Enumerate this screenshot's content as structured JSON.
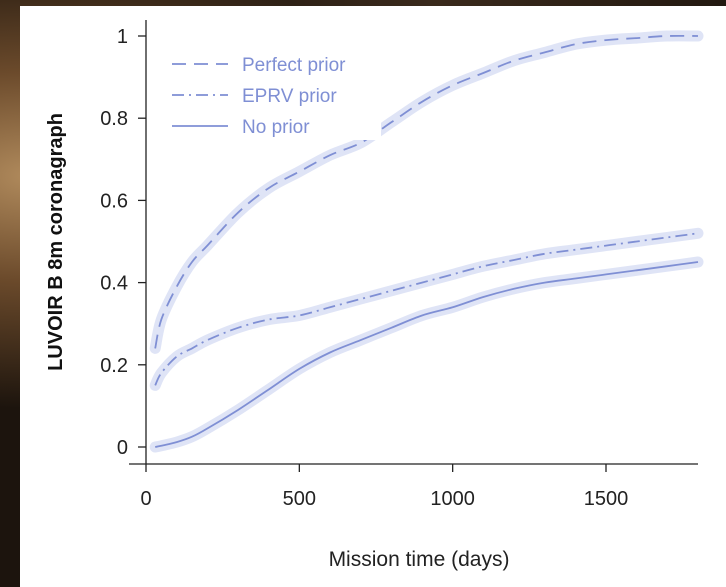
{
  "colors": {
    "series": "#7f8fd4",
    "band": "#dbe1f5",
    "axis": "#222222"
  },
  "chart_data": {
    "type": "line",
    "xlabel": "Mission time (days)",
    "ylabel": "LUVOIR B 8m coronagraph",
    "xlim": [
      0,
      1800
    ],
    "ylim": [
      0,
      1.0
    ],
    "xticks": [
      "0",
      "500",
      "1000",
      "1500"
    ],
    "yticks": [
      "0",
      "0.2",
      "0.4",
      "0.6",
      "0.8",
      "1"
    ],
    "grid": false,
    "legend": "top-left",
    "series": [
      {
        "name": "Perfect prior",
        "style": "dashed",
        "x": [
          30,
          50,
          100,
          150,
          200,
          300,
          400,
          500,
          600,
          700,
          800,
          900,
          1000,
          1100,
          1200,
          1300,
          1400,
          1500,
          1600,
          1700,
          1800
        ],
        "y": [
          0.24,
          0.31,
          0.39,
          0.45,
          0.49,
          0.57,
          0.63,
          0.67,
          0.71,
          0.74,
          0.79,
          0.84,
          0.88,
          0.91,
          0.94,
          0.96,
          0.98,
          0.99,
          0.995,
          1.0,
          1.0
        ]
      },
      {
        "name": "EPRV prior",
        "style": "dashdot",
        "x": [
          30,
          50,
          100,
          150,
          200,
          300,
          400,
          500,
          600,
          700,
          800,
          900,
          1000,
          1100,
          1200,
          1300,
          1400,
          1500,
          1600,
          1700,
          1800
        ],
        "y": [
          0.15,
          0.18,
          0.22,
          0.24,
          0.26,
          0.29,
          0.31,
          0.32,
          0.34,
          0.36,
          0.38,
          0.4,
          0.42,
          0.44,
          0.455,
          0.47,
          0.48,
          0.49,
          0.5,
          0.51,
          0.52
        ]
      },
      {
        "name": "No prior",
        "style": "solid",
        "x": [
          30,
          50,
          100,
          150,
          200,
          300,
          400,
          500,
          600,
          700,
          800,
          900,
          1000,
          1100,
          1200,
          1300,
          1400,
          1500,
          1600,
          1700,
          1800
        ],
        "y": [
          0.0,
          0.003,
          0.012,
          0.025,
          0.045,
          0.09,
          0.14,
          0.19,
          0.23,
          0.26,
          0.29,
          0.32,
          0.34,
          0.365,
          0.385,
          0.4,
          0.41,
          0.42,
          0.43,
          0.44,
          0.45
        ]
      }
    ]
  }
}
